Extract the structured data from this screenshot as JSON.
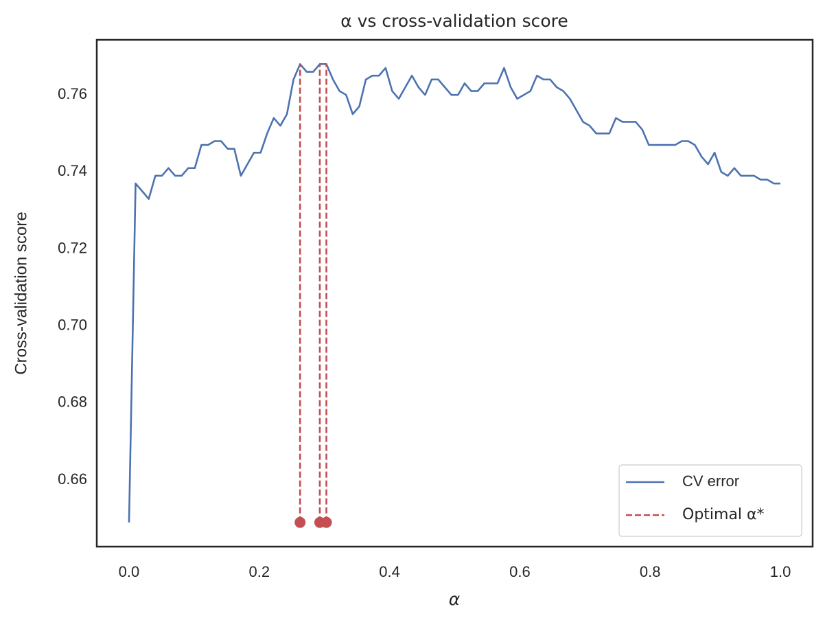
{
  "chart_data": {
    "type": "line",
    "title": "α vs cross-validation score",
    "x_label": "α",
    "y_label": "Cross-validation score",
    "x": [
      0,
      0.0101,
      0.0202,
      0.0303,
      0.0404,
      0.0505,
      0.0606,
      0.0707,
      0.0808,
      0.0909,
      0.101,
      0.1111,
      0.1212,
      0.1313,
      0.1414,
      0.1515,
      0.1616,
      0.1717,
      0.1818,
      0.1919,
      0.202,
      0.2121,
      0.2222,
      0.2323,
      0.2424,
      0.2525,
      0.2626,
      0.2727,
      0.2828,
      0.2929,
      0.303,
      0.3131,
      0.3232,
      0.3333,
      0.3434,
      0.3535,
      0.3636,
      0.3737,
      0.3838,
      0.3939,
      0.404,
      0.4141,
      0.4242,
      0.4343,
      0.4444,
      0.4545,
      0.4646,
      0.4747,
      0.4848,
      0.4949,
      0.5051,
      0.5152,
      0.5253,
      0.5354,
      0.5455,
      0.5556,
      0.5657,
      0.5758,
      0.5859,
      0.596,
      0.6061,
      0.6162,
      0.6263,
      0.6364,
      0.6465,
      0.6566,
      0.6667,
      0.6768,
      0.6869,
      0.697,
      0.7071,
      0.7172,
      0.7273,
      0.7374,
      0.7475,
      0.7576,
      0.7677,
      0.7778,
      0.7879,
      0.798,
      0.8081,
      0.8182,
      0.8283,
      0.8384,
      0.8485,
      0.8586,
      0.8687,
      0.8788,
      0.8889,
      0.899,
      0.9091,
      0.9192,
      0.9293,
      0.9394,
      0.9495,
      0.9596,
      0.9697,
      0.9798,
      0.9899,
      1.0
    ],
    "series": [
      {
        "name": "CV error",
        "color": "#4c72b0",
        "values": [
          0.649,
          0.737,
          0.735,
          0.733,
          0.739,
          0.739,
          0.741,
          0.739,
          0.739,
          0.741,
          0.741,
          0.747,
          0.747,
          0.748,
          0.748,
          0.746,
          0.746,
          0.739,
          0.742,
          0.745,
          0.745,
          0.75,
          0.754,
          0.752,
          0.755,
          0.764,
          0.768,
          0.766,
          0.766,
          0.768,
          0.768,
          0.764,
          0.761,
          0.76,
          0.755,
          0.757,
          0.764,
          0.765,
          0.765,
          0.767,
          0.761,
          0.759,
          0.762,
          0.765,
          0.762,
          0.76,
          0.764,
          0.764,
          0.762,
          0.76,
          0.76,
          0.763,
          0.761,
          0.761,
          0.763,
          0.763,
          0.763,
          0.767,
          0.762,
          0.759,
          0.76,
          0.761,
          0.765,
          0.764,
          0.764,
          0.762,
          0.761,
          0.759,
          0.756,
          0.753,
          0.752,
          0.75,
          0.75,
          0.75,
          0.754,
          0.753,
          0.753,
          0.753,
          0.751,
          0.747,
          0.747,
          0.747,
          0.747,
          0.747,
          0.748,
          0.748,
          0.747,
          0.744,
          0.742,
          0.745,
          0.74,
          0.739,
          0.741,
          0.739,
          0.739,
          0.739,
          0.738,
          0.738,
          0.737,
          0.737
        ]
      }
    ],
    "optimal": {
      "name": "Optimal α*",
      "color": "#c44e52",
      "x": [
        0.2626,
        0.2929,
        0.303
      ],
      "values": [
        0.768,
        0.768,
        0.768
      ],
      "base": 0.649
    },
    "xlim": [
      -0.0495,
      1.0495
    ],
    "ylim": [
      0.6427,
      0.7743
    ],
    "xticks": [
      {
        "value": 0,
        "label": "0.0"
      },
      0.2,
      0.4,
      0.6,
      0.8,
      {
        "value": 1,
        "label": "1.0"
      }
    ],
    "yticks": [
      0.66,
      0.68,
      {
        "value": 0.7,
        "label": "0.70"
      },
      0.72,
      0.74,
      0.76
    ],
    "legend": "lower right"
  }
}
